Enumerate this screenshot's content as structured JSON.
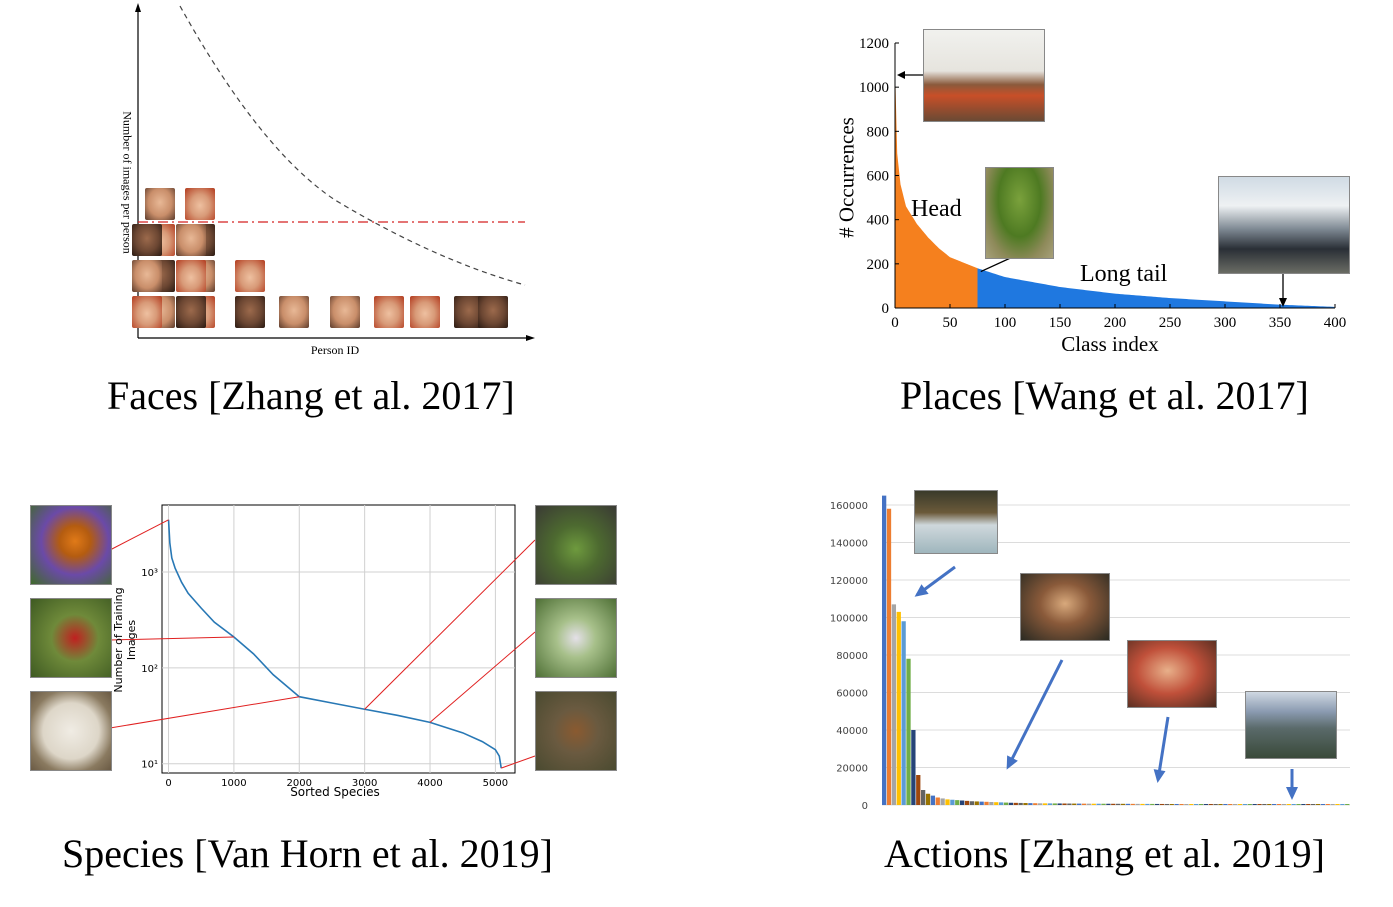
{
  "panels": {
    "faces": {
      "caption": "Faces [Zhang et al. 2017]",
      "xlabel": "Person ID",
      "ylabel": "Number of images per person"
    },
    "places": {
      "caption": "Places [Wang et al. 2017]",
      "xlabel": "Class index",
      "ylabel": "# Occurrences",
      "head_label": "Head",
      "tail_label": "Long tail",
      "head_color": "#f5801e",
      "tail_color": "#1f78e0"
    },
    "species": {
      "caption": "Species [Van Horn et al. 2019]",
      "xlabel": "Sorted Species",
      "ylabel": "Number of Training Images",
      "line_color": "#2878b5"
    },
    "actions": {
      "caption": "Actions [Zhang et al. 2019]",
      "arrow_color": "#4472c4"
    }
  },
  "chart_data": [
    {
      "type": "scatter",
      "title": "",
      "xlabel": "Person ID",
      "ylabel": "Number of images per person",
      "columns": [
        8,
        6,
        3,
        2,
        2,
        1
      ],
      "note": "face image grid with dashed decreasing curve and red dash-dot threshold line"
    },
    {
      "type": "area",
      "title": "",
      "xlabel": "Class index",
      "ylabel": "# Occurrences",
      "xlim": [
        0,
        400
      ],
      "ylim": [
        0,
        1200
      ],
      "xticks": [
        0,
        50,
        100,
        150,
        200,
        250,
        300,
        350,
        400
      ],
      "yticks": [
        0,
        200,
        400,
        600,
        800,
        1000,
        1200
      ],
      "head_end": 75,
      "series": [
        {
          "x": [
            0,
            2,
            5,
            10,
            20,
            30,
            40,
            50,
            60,
            75,
            100,
            150,
            200,
            250,
            300,
            350,
            400
          ],
          "y": [
            1100,
            700,
            560,
            460,
            380,
            320,
            270,
            230,
            210,
            180,
            140,
            95,
            65,
            45,
            30,
            15,
            5
          ]
        }
      ]
    },
    {
      "type": "line",
      "title": "",
      "xlabel": "Sorted Species",
      "ylabel": "Number of Training Images",
      "xlim": [
        -100,
        5300
      ],
      "ylim": [
        8,
        5000
      ],
      "yscale": "log",
      "xticks": [
        0,
        1000,
        2000,
        3000,
        4000,
        5000
      ],
      "yticks": [
        10,
        100,
        1000
      ],
      "ytick_labels": [
        "10¹",
        "10²",
        "10³"
      ],
      "grid": true,
      "series": [
        {
          "x": [
            0,
            20,
            50,
            100,
            200,
            300,
            500,
            700,
            1000,
            1300,
            1600,
            2000,
            2500,
            3000,
            3500,
            4000,
            4500,
            4800,
            5000,
            5060,
            5089
          ],
          "y": [
            3500,
            2000,
            1400,
            1100,
            780,
            600,
            420,
            300,
            210,
            140,
            85,
            50,
            43,
            37,
            32,
            27,
            21,
            17,
            14,
            12,
            9
          ]
        }
      ]
    },
    {
      "type": "bar",
      "title": "",
      "xlabel": "",
      "ylabel": "",
      "ylim": [
        0,
        160000
      ],
      "yticks": [
        0,
        20000,
        40000,
        60000,
        80000,
        100000,
        120000,
        140000,
        160000
      ],
      "values": [
        165000,
        158000,
        107000,
        103000,
        98000,
        78000,
        40000,
        16000,
        8000,
        6000,
        5000,
        4000,
        3500,
        3000,
        2800,
        2600,
        2400,
        2200,
        2000,
        1900,
        1800,
        1700,
        1600,
        1500,
        1400,
        1300,
        1200,
        1150,
        1100,
        1050,
        1000,
        950,
        900,
        880,
        860,
        840,
        820,
        800,
        780,
        760,
        740,
        720,
        700,
        690,
        680,
        670,
        660,
        650,
        640,
        630,
        620,
        610,
        600,
        590,
        580,
        570,
        560,
        550,
        540,
        530,
        520,
        510,
        500,
        495,
        490,
        485,
        480,
        475,
        470,
        465,
        460,
        455,
        450,
        445,
        440,
        435,
        430,
        425,
        420,
        415,
        410,
        405,
        400,
        395,
        390,
        385,
        380,
        375,
        370,
        365,
        360,
        355,
        350,
        345,
        340,
        335
      ],
      "palette": [
        "#4472c4",
        "#ed7d31",
        "#a5a5a5",
        "#ffc000",
        "#5b9bd5",
        "#70ad47",
        "#264478",
        "#9e480e",
        "#636363",
        "#997300"
      ]
    }
  ]
}
